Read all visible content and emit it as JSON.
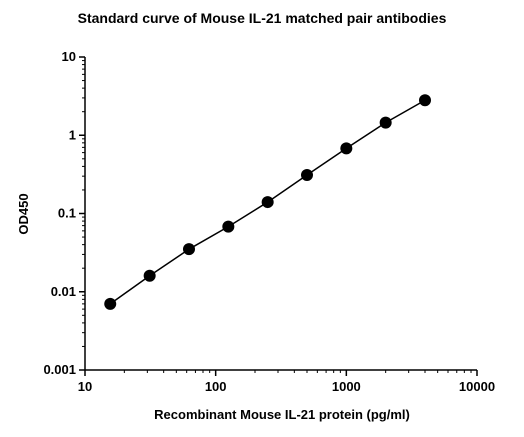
{
  "chart_data": {
    "type": "scatter",
    "title": "Standard curve of Mouse IL-21 matched pair antibodies",
    "xlabel": "Recombinant Mouse IL-21 protein (pg/ml)",
    "ylabel": "OD450",
    "xscale": "log",
    "yscale": "log",
    "xlim": [
      10,
      10000
    ],
    "ylim": [
      0.001,
      10
    ],
    "xticks": [
      "10",
      "100",
      "1000",
      "10000"
    ],
    "yticks": [
      "0.001",
      "0.01",
      "0.1",
      "1",
      "10"
    ],
    "grid": false,
    "fit_line": true,
    "marker_color": "#000000",
    "x": [
      15.6,
      31.25,
      62.5,
      125,
      250,
      500,
      1000,
      2000,
      4000
    ],
    "y": [
      0.007,
      0.016,
      0.035,
      0.068,
      0.14,
      0.31,
      0.68,
      1.45,
      2.8
    ]
  }
}
